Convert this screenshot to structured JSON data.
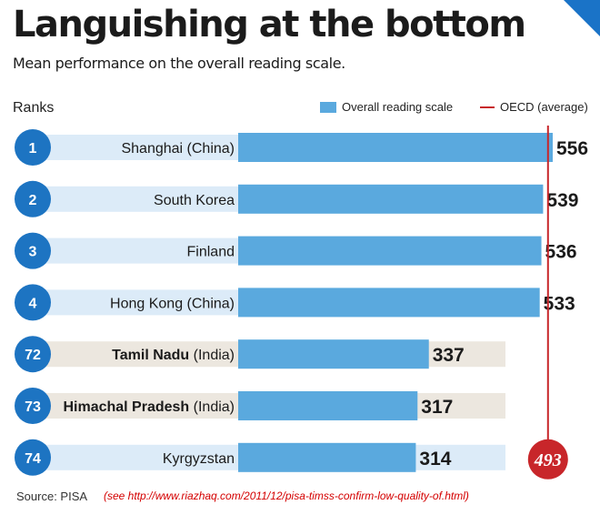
{
  "header": {
    "title": "Languishing at the bottom",
    "subtitle": "Mean performance on the overall reading scale."
  },
  "ranks_label": "Ranks",
  "legend": {
    "bar_label": "Overall reading scale",
    "line_label": "OECD (average)"
  },
  "colors": {
    "bar": "#5aa9de",
    "row_top": "#dcebf8",
    "row_india": "#ece7df",
    "badge": "#1d74c2",
    "oecd_line": "#c8262a",
    "oecd_badge": "#c8262a"
  },
  "chart_data": {
    "type": "bar",
    "orientation": "horizontal",
    "title": "Languishing at the bottom",
    "subtitle": "Mean performance on the overall reading scale.",
    "categories": [
      "Shanghai (China)",
      "South Korea",
      "Finland",
      "Hong Kong (China)",
      "Tamil Nadu (India)",
      "Himachal Pradesh (India)",
      "Kyrgyzstan"
    ],
    "rows": [
      {
        "rank": "1",
        "label": "Shanghai (China)",
        "name_bold": "",
        "name_rest": "Shanghai (China)",
        "value": 556,
        "highlight": false
      },
      {
        "rank": "2",
        "label": "South Korea",
        "name_bold": "",
        "name_rest": "South Korea",
        "value": 539,
        "highlight": false
      },
      {
        "rank": "3",
        "label": "Finland",
        "name_bold": "",
        "name_rest": "Finland",
        "value": 536,
        "highlight": false
      },
      {
        "rank": "4",
        "label": "Hong Kong (China)",
        "name_bold": "",
        "name_rest": "Hong Kong (China)",
        "value": 533,
        "highlight": false
      },
      {
        "rank": "72",
        "label": "Tamil Nadu (India)",
        "name_bold": "Tamil Nadu",
        "name_rest": " (India)",
        "value": 337,
        "highlight": true
      },
      {
        "rank": "73",
        "label": "Himachal Pradesh (India)",
        "name_bold": "Himachal Pradesh",
        "name_rest": " (India)",
        "value": 317,
        "highlight": true
      },
      {
        "rank": "74",
        "label": "Kyrgyzstan",
        "name_bold": "",
        "name_rest": "Kyrgyzstan",
        "value": 314,
        "highlight": false
      }
    ],
    "series": [
      {
        "name": "Overall reading scale",
        "values": [
          556,
          539,
          536,
          533,
          337,
          317,
          314
        ]
      }
    ],
    "reference_line": {
      "name": "OECD (average)",
      "value": 493,
      "label": "493"
    },
    "ylabel": "Ranks",
    "grid": false,
    "legend_position": "top-right"
  },
  "footer": {
    "source": "Source: PISA",
    "note": "(see http://www.riazhaq.com/2011/12/pisa-timss-confirm-low-quality-of.html)"
  }
}
